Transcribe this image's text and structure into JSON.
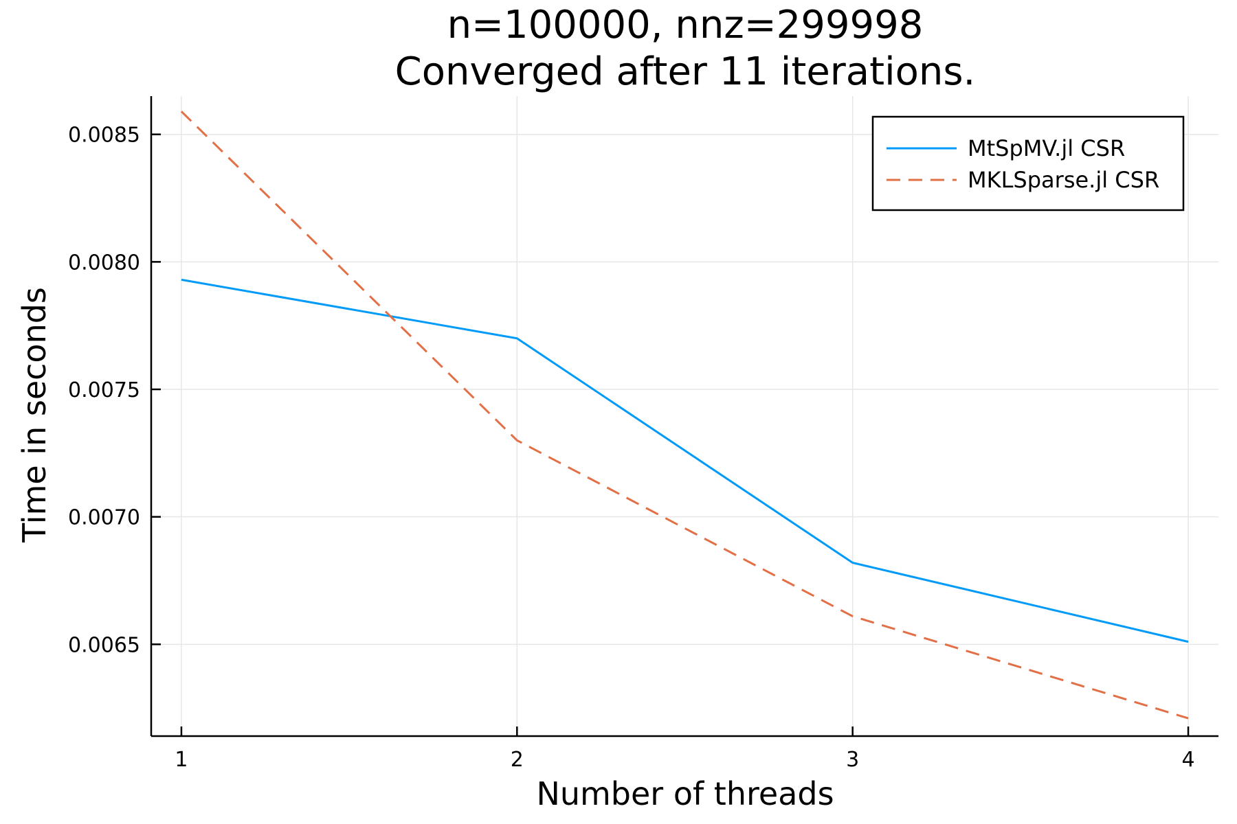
{
  "chart_data": {
    "type": "line",
    "title": "n=100000, nnz=299998",
    "subtitle": "Converged after 11 iterations.",
    "xlabel": "Number of threads",
    "ylabel": "Time in seconds",
    "x": [
      1,
      2,
      3,
      4
    ],
    "xlim": [
      0.91,
      4.09
    ],
    "ylim": [
      0.00614,
      0.00865
    ],
    "xticks": [
      1,
      2,
      3,
      4
    ],
    "xtick_labels": [
      "1",
      "2",
      "3",
      "4"
    ],
    "yticks": [
      0.0065,
      0.007,
      0.0075,
      0.008,
      0.0085
    ],
    "ytick_labels": [
      "0.0065",
      "0.0070",
      "0.0075",
      "0.0080",
      "0.0085"
    ],
    "grid": true,
    "legend_position": "top-right",
    "series": [
      {
        "name": "MtSpMV.jl CSR",
        "values": [
          0.00793,
          0.0077,
          0.00682,
          0.00651
        ],
        "color": "#009af9",
        "dash": "solid"
      },
      {
        "name": "MKLSparse.jl CSR",
        "values": [
          0.00859,
          0.0073,
          0.00661,
          0.00621
        ],
        "color": "#e26f46",
        "dash": "dashed"
      }
    ]
  }
}
